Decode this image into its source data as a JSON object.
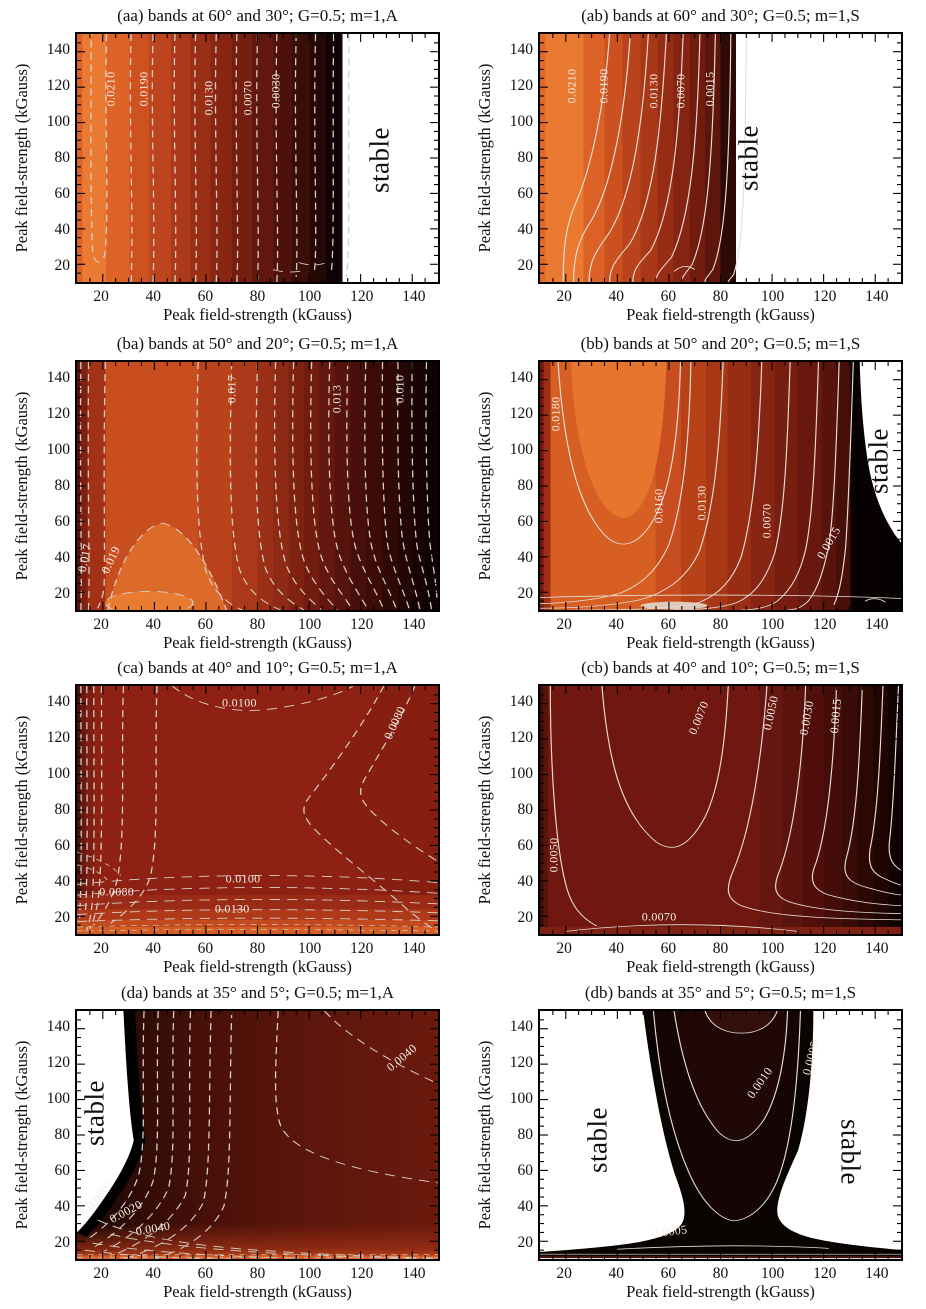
{
  "chart_data": {
    "type": "contour",
    "layout": "4x2 grid of filled contour maps",
    "colormap": "bright orange (high) through dark red to black (low); white = stable region",
    "axes": {
      "xlabel": "Peak field-strength (kGauss)",
      "ylabel": "Peak field-strength (kGauss)",
      "x_range": [
        10,
        150
      ],
      "y_range": [
        10,
        150
      ],
      "xticks": [
        20,
        40,
        60,
        80,
        100,
        120,
        140
      ],
      "yticks": [
        20,
        40,
        60,
        80,
        100,
        120,
        140
      ],
      "minor_tick_step": 5
    },
    "panels": [
      {
        "id": "aa",
        "title": "(aa) bands at 60° and 30°; G=0.5; m=1,A",
        "line_style": "dashed",
        "contour_levels": [
          "0.0210",
          "0.0190",
          "0.0130",
          "0.0070",
          "0.0030"
        ],
        "stable_region": "right of x≈113 kGauss",
        "contour_labels": [
          {
            "t": "0.0210",
            "x": 9.5,
            "y": 22,
            "r": -90
          },
          {
            "t": "0.0190",
            "x": 18.5,
            "y": 22,
            "r": -90
          },
          {
            "t": "0.0130",
            "x": 36.5,
            "y": 26,
            "r": -90
          },
          {
            "t": "0.0070",
            "x": 47.5,
            "y": 26,
            "r": -90
          },
          {
            "t": "0.0030",
            "x": 55,
            "y": 23,
            "r": -90
          }
        ],
        "stable_labels": [
          {
            "t": "stable",
            "x": 84,
            "y": 51,
            "r": -90
          }
        ]
      },
      {
        "id": "ab",
        "title": "(ab) bands at 60° and 30°; G=0.5; m=1,S",
        "line_style": "solid",
        "contour_levels": [
          "0.0210",
          "0.0190",
          "0.0130",
          "0.0070",
          "0.0015"
        ],
        "stable_region": "right of x≈86 kGauss",
        "contour_labels": [
          {
            "t": "0.0210",
            "x": 9,
            "y": 21,
            "r": -90
          },
          {
            "t": "0.0190",
            "x": 17.8,
            "y": 21,
            "r": -90
          },
          {
            "t": "0.0130",
            "x": 31.5,
            "y": 23,
            "r": -90
          },
          {
            "t": "0.0070",
            "x": 39,
            "y": 23,
            "r": -90
          },
          {
            "t": "0.0015",
            "x": 47,
            "y": 22,
            "r": -90
          }
        ],
        "stable_labels": [
          {
            "t": "stable",
            "x": 58,
            "y": 50,
            "r": -90
          }
        ]
      },
      {
        "id": "ba",
        "title": "(ba) bands at 50° and 20°; G=0.5; m=1,A",
        "line_style": "dashed",
        "contour_levels": [
          "0.019",
          "0.017",
          "0.013",
          "0.010"
        ],
        "stable_region": "none",
        "contour_labels": [
          {
            "t": "0.017",
            "x": 43,
            "y": 11,
            "r": -90
          },
          {
            "t": "0.013",
            "x": 72,
            "y": 15,
            "r": -90
          },
          {
            "t": "0.010",
            "x": 89.5,
            "y": 11,
            "r": -90
          },
          {
            "t": "0.017",
            "x": 2.2,
            "y": 79,
            "r": -78
          },
          {
            "t": "0.019",
            "x": 9.5,
            "y": 80,
            "r": -65
          }
        ],
        "stable_labels": []
      },
      {
        "id": "bb",
        "title": "(bb) bands at 50° and 20°; G=0.5; m=1,S",
        "line_style": "solid",
        "contour_levels": [
          "0.0180",
          "0.0160",
          "0.0130",
          "0.0070",
          "0.0015"
        ],
        "stable_region": "upper right, right of x≈132 kGauss",
        "contour_labels": [
          {
            "t": "0.0180",
            "x": 4.5,
            "y": 21,
            "r": -90
          },
          {
            "t": "0.0160",
            "x": 33,
            "y": 58,
            "r": -90
          },
          {
            "t": "0.0130",
            "x": 45,
            "y": 57,
            "r": -90
          },
          {
            "t": "0.0070",
            "x": 63,
            "y": 64,
            "r": -90
          },
          {
            "t": "0.0015",
            "x": 80,
            "y": 73,
            "r": -60
          }
        ],
        "stable_labels": [
          {
            "t": "stable",
            "x": 94,
            "y": 40,
            "r": -90
          }
        ]
      },
      {
        "id": "ca",
        "title": "(ca) bands at 40° and 10°; G=0.5; m=1,A",
        "line_style": "dashed",
        "contour_levels": [
          "0.0080",
          "0.0100",
          "0.0130"
        ],
        "stable_region": "none",
        "contour_labels": [
          {
            "t": "0.0100",
            "x": 45,
            "y": 7,
            "r": 0
          },
          {
            "t": "0.0080",
            "x": 88,
            "y": 15,
            "r": -65
          },
          {
            "t": "0.0080",
            "x": 11,
            "y": 83,
            "r": 0
          },
          {
            "t": "0.0100",
            "x": 46,
            "y": 78,
            "r": 0
          },
          {
            "t": "0.0130",
            "x": 43,
            "y": 90,
            "r": 0
          }
        ],
        "stable_labels": []
      },
      {
        "id": "cb",
        "title": "(cb) bands at 40° and 10°; G=0.5; m=1,S",
        "line_style": "solid",
        "contour_levels": [
          "0.0070",
          "0.0050",
          "0.0030",
          "0.0015"
        ],
        "stable_region": "none",
        "contour_labels": [
          {
            "t": "0.0070",
            "x": 44,
            "y": 13,
            "r": -68
          },
          {
            "t": "0.0050",
            "x": 64,
            "y": 11,
            "r": -78
          },
          {
            "t": "0.0030",
            "x": 74,
            "y": 13,
            "r": -80
          },
          {
            "t": "0.0015",
            "x": 82,
            "y": 12,
            "r": -85
          },
          {
            "t": "0.0050",
            "x": 4,
            "y": 68,
            "r": -90
          },
          {
            "t": "0.0070",
            "x": 33,
            "y": 93,
            "r": 0
          }
        ],
        "stable_labels": []
      },
      {
        "id": "da",
        "title": "(da) bands at 35° and 5°; G=0.5; m=1,A",
        "line_style": "dashed",
        "contour_levels": [
          "0.0005",
          "0.0020",
          "0.0040"
        ],
        "stable_region": "left of x≈38 kGauss (upper left)",
        "contour_labels": [
          {
            "t": "0.0040",
            "x": 90,
            "y": 19,
            "r": -40
          },
          {
            "t": "0.0005",
            "x": 6.5,
            "y": 74,
            "r": -52
          },
          {
            "t": "0.0020",
            "x": 13.5,
            "y": 81,
            "r": -28
          },
          {
            "t": "0.0040",
            "x": 21,
            "y": 88,
            "r": -10
          }
        ],
        "stable_labels": [
          {
            "t": "stable",
            "x": 5,
            "y": 41,
            "r": -90
          }
        ]
      },
      {
        "id": "db",
        "title": "(db) bands at 35° and 5°; G=0.5; m=1,S",
        "line_style": "solid",
        "contour_levels": [
          "0.0010",
          "0.0005"
        ],
        "stable_region": "left of x≈60 and right of x≈115 kGauss",
        "contour_labels": [
          {
            "t": "0.0010",
            "x": 61,
            "y": 29,
            "r": -55
          },
          {
            "t": "0.0005",
            "x": 75,
            "y": 19,
            "r": -75
          },
          {
            "t": "0.0005",
            "x": 36,
            "y": 89,
            "r": -8
          }
        ],
        "stable_labels": [
          {
            "t": "stable",
            "x": 16,
            "y": 52,
            "r": -90
          },
          {
            "t": "stable",
            "x": 86,
            "y": 57,
            "r": 90
          }
        ]
      }
    ]
  }
}
